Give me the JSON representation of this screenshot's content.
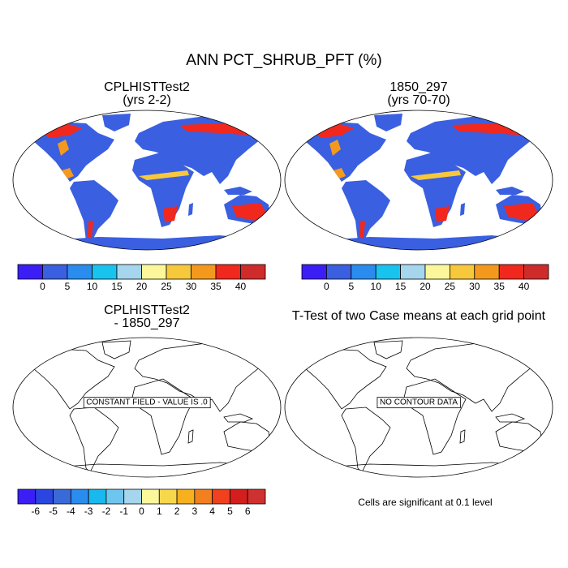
{
  "title": "ANN PCT_SHRUB_PFT (%)",
  "panels": [
    {
      "title": "CPLHISTTest2",
      "subtitle": "(yrs 2-2)"
    },
    {
      "title": "1850_297",
      "subtitle": "(yrs 70-70)"
    },
    {
      "title": "CPLHISTTest2",
      "subtitle": "- 1850_297",
      "note": "CONSTANT FIELD - VALUE IS .0"
    },
    {
      "title": "T-Test of two Case means at each grid point",
      "note": "NO CONTOUR DATA"
    }
  ],
  "colorbars": [
    {
      "colors": [
        "#3b1ef5",
        "#3a5fe0",
        "#2b8cef",
        "#19c3ef",
        "#a6d5ee",
        "#fbf79a",
        "#f7c83c",
        "#f39a1e",
        "#f0281e",
        "#d02b2b"
      ],
      "labels": [
        0,
        5,
        10,
        15,
        20,
        25,
        30,
        35,
        40
      ]
    },
    {
      "colors": [
        "#3b1ef5",
        "#3a5fe0",
        "#2b8cef",
        "#19c3ef",
        "#a6d5ee",
        "#fbf79a",
        "#f7c83c",
        "#f39a1e",
        "#f0281e",
        "#d02b2b"
      ],
      "labels": [
        0,
        5,
        10,
        15,
        20,
        25,
        30,
        35,
        40
      ]
    },
    {
      "colors": [
        "#3b1ef5",
        "#2a45e0",
        "#3a6ad8",
        "#2b8cef",
        "#19b9ef",
        "#6ec6ee",
        "#a6d5ee",
        "#fbf79a",
        "#f7d84c",
        "#f7b01e",
        "#f3801e",
        "#f0401e",
        "#d41e1e",
        "#cf3030"
      ],
      "labels": [
        -6,
        -5,
        -4,
        -3,
        -2,
        -1,
        0,
        1,
        2,
        3,
        4,
        5,
        6
      ]
    }
  ],
  "footnote": "Cells are significant at 0.1 level"
}
